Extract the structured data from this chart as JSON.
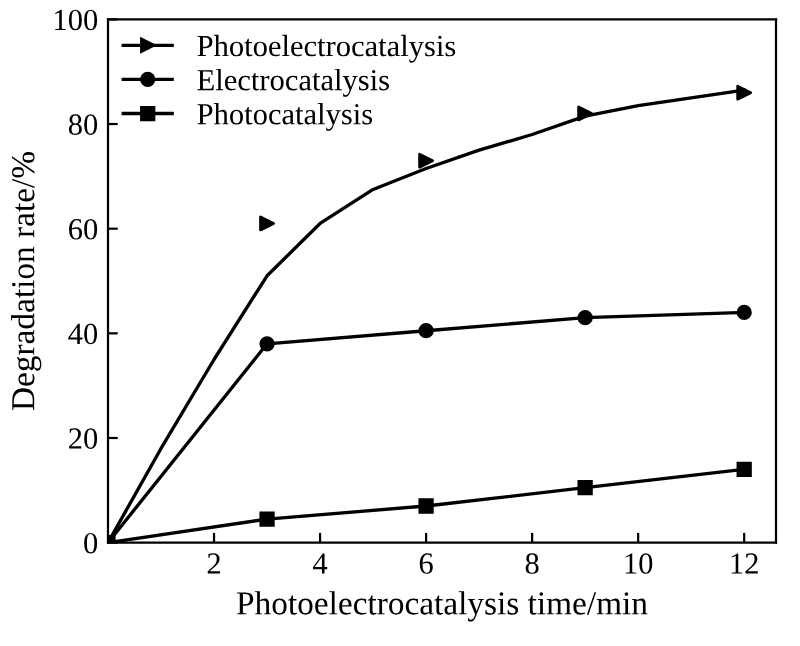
{
  "chart_data": {
    "type": "line",
    "xlabel": "Photoelectrocatalysis time/min",
    "ylabel": "Degradation rate/%",
    "xlim": [
      0,
      12.6
    ],
    "xticks": [
      2,
      4,
      6,
      8,
      10,
      12
    ],
    "ylim": [
      0,
      100
    ],
    "yticks": [
      0,
      20,
      40,
      60,
      80,
      100
    ],
    "grid": false,
    "legend": "top left",
    "line_style": "solid",
    "series": [
      {
        "marker": "none",
        "color": "#000000",
        "x": [
          0,
          1,
          2,
          3,
          4,
          5,
          6,
          7,
          8,
          9,
          10,
          11,
          12
        ],
        "values": [
          0,
          18,
          35,
          51,
          61,
          67.5,
          71.5,
          75,
          78,
          81.5,
          83.5,
          85,
          86.5
        ]
      },
      {
        "name": "Photoelectrocatalysis",
        "type": "scatter",
        "marker": "triangle",
        "color": "#000000",
        "x": [
          3,
          6,
          9,
          12
        ],
        "values": [
          61,
          73,
          82,
          86
        ]
      },
      {
        "name": "Electrocatalysis",
        "marker": "circle",
        "color": "#000000",
        "x": [
          0,
          3,
          6,
          9,
          12
        ],
        "values": [
          0,
          38,
          40.5,
          43,
          44
        ]
      },
      {
        "name": "Photocatalysis",
        "marker": "square",
        "color": "#000000",
        "x": [
          0,
          3,
          6,
          9,
          12
        ],
        "values": [
          0,
          4.5,
          7,
          10.5,
          14
        ]
      }
    ]
  }
}
